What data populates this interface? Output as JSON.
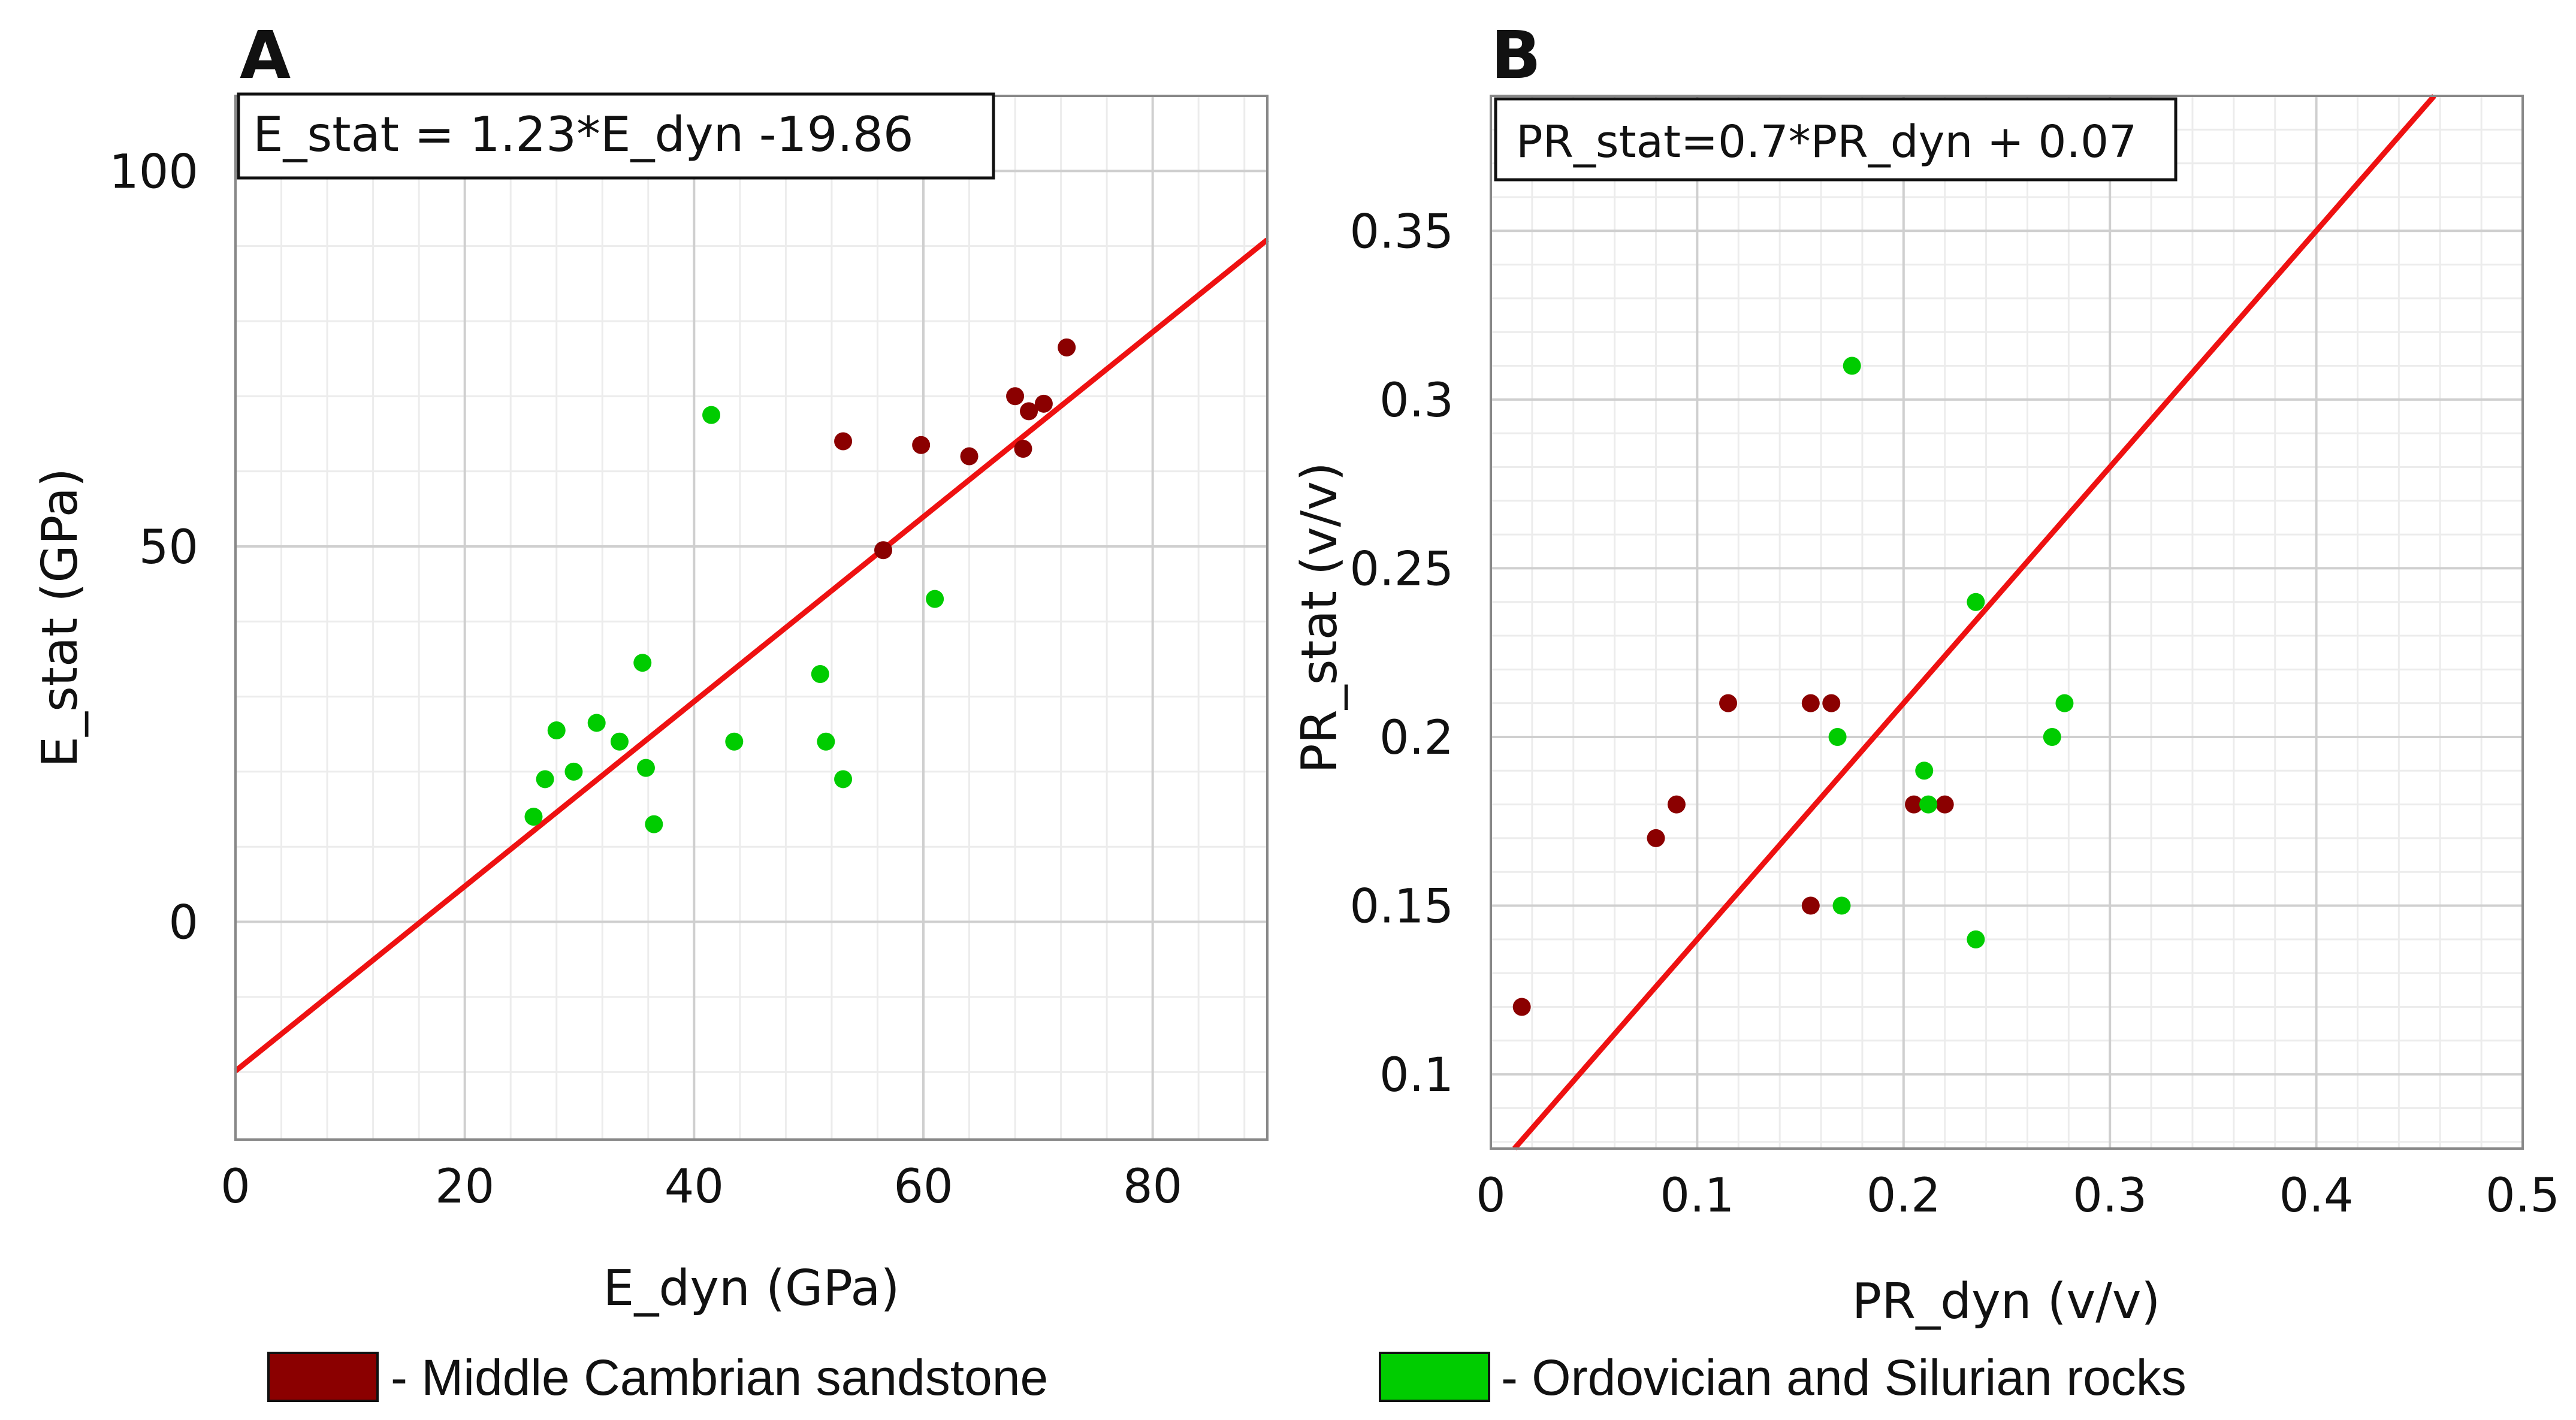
{
  "chart_data": [
    {
      "type": "scatter",
      "panel": "A",
      "equation": "E_stat = 1.23*E_dyn -19.86",
      "xlabel": "E_dyn (GPa)",
      "ylabel": "E_stat (GPa)",
      "xlim": [
        0,
        90
      ],
      "ylim": [
        -29,
        110
      ],
      "xticks": [
        0,
        20,
        40,
        60,
        80
      ],
      "xtick_labels": [
        "0",
        "20",
        "40",
        "60",
        "80"
      ],
      "yticks": [
        0,
        50,
        100
      ],
      "ytick_labels": [
        "0",
        "50",
        "100"
      ],
      "grid": true,
      "fit_line": {
        "slope": 1.23,
        "intercept": -19.86
      },
      "series": [
        {
          "name": "Middle Cambrian sandstone",
          "color": "#8b0000",
          "points": [
            [
              53.0,
              64.0
            ],
            [
              56.5,
              49.5
            ],
            [
              59.8,
              63.5
            ],
            [
              64.0,
              62.0
            ],
            [
              68.0,
              70.0
            ],
            [
              68.7,
              63.0
            ],
            [
              69.2,
              68.0
            ],
            [
              70.5,
              69.0
            ],
            [
              72.5,
              76.5
            ]
          ]
        },
        {
          "name": "Ordovician and Silurian rocks",
          "color": "#00cc00",
          "points": [
            [
              26.0,
              14.0
            ],
            [
              27.0,
              19.0
            ],
            [
              28.0,
              25.5
            ],
            [
              29.5,
              20.0
            ],
            [
              31.5,
              26.5
            ],
            [
              33.5,
              24.0
            ],
            [
              35.5,
              34.5
            ],
            [
              35.8,
              20.5
            ],
            [
              36.5,
              13.0
            ],
            [
              41.5,
              67.5
            ],
            [
              43.5,
              24.0
            ],
            [
              51.0,
              33.0
            ],
            [
              51.5,
              24.0
            ],
            [
              53.0,
              19.0
            ],
            [
              61.0,
              43.0
            ]
          ]
        }
      ]
    },
    {
      "type": "scatter",
      "panel": "B",
      "equation": "PR_stat=0.7*PR_dyn + 0.07",
      "xlabel": "PR_dyn (v/v)",
      "ylabel": "PR_stat (v/v)",
      "xlim": [
        0,
        0.5
      ],
      "ylim": [
        0.078,
        0.39
      ],
      "xticks": [
        0,
        0.1,
        0.2,
        0.3,
        0.4,
        0.5
      ],
      "xtick_labels": [
        "0",
        "0.1",
        "0.2",
        "0.3",
        "0.4",
        "0.5"
      ],
      "yticks": [
        0.1,
        0.15,
        0.2,
        0.25,
        0.3,
        0.35
      ],
      "ytick_labels": [
        "0.1",
        "0.15",
        "0.2",
        "0.25",
        "0.3",
        "0.35"
      ],
      "grid": true,
      "fit_line": {
        "slope": 0.7,
        "intercept": 0.07
      },
      "series": [
        {
          "name": "Middle Cambrian sandstone",
          "color": "#8b0000",
          "points": [
            [
              0.015,
              0.12
            ],
            [
              0.08,
              0.17
            ],
            [
              0.09,
              0.18
            ],
            [
              0.115,
              0.21
            ],
            [
              0.155,
              0.21
            ],
            [
              0.155,
              0.15
            ],
            [
              0.165,
              0.21
            ],
            [
              0.205,
              0.18
            ],
            [
              0.22,
              0.18
            ]
          ]
        },
        {
          "name": "Ordovician and Silurian rocks",
          "color": "#00cc00",
          "points": [
            [
              0.168,
              0.2
            ],
            [
              0.17,
              0.15
            ],
            [
              0.175,
              0.31
            ],
            [
              0.21,
              0.19
            ],
            [
              0.212,
              0.18
            ],
            [
              0.235,
              0.24
            ],
            [
              0.235,
              0.14
            ],
            [
              0.272,
              0.2
            ],
            [
              0.278,
              0.21
            ]
          ]
        }
      ]
    }
  ],
  "legend": [
    {
      "label": "- Middle Cambrian sandstone",
      "color": "#8b0000"
    },
    {
      "label": "- Ordovician and Silurian rocks",
      "color": "#00cc00"
    }
  ]
}
